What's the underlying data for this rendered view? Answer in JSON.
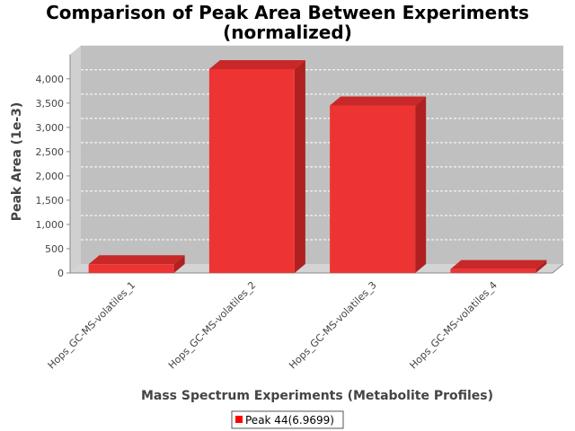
{
  "chart_data": {
    "type": "bar",
    "title_line1": "Comparison of Peak Area Between Experiments",
    "title_line2": "(normalized)",
    "xlabel": "Mass Spectrum Experiments (Metabolite Profiles)",
    "ylabel": "Peak Area (1e-3)",
    "categories": [
      "Hops_GC-MS-volatiles_1",
      "Hops_GC-MS-volatiles_2",
      "Hops_GC-MS-volatiles_3",
      "Hops_GC-MS-volatiles_4"
    ],
    "series": [
      {
        "name": "Peak 44(6.9699)",
        "values": [
          180,
          4200,
          3450,
          80
        ]
      }
    ],
    "ylim": [
      0,
      4500
    ],
    "yticks": [
      0,
      500,
      1000,
      1500,
      2000,
      2500,
      3000,
      3500,
      4000
    ],
    "ytick_labels": [
      "0",
      "500",
      "1,000",
      "1,500",
      "2,000",
      "2,500",
      "3,000",
      "3,500",
      "4,000"
    ],
    "grid": true,
    "legend_position": "bottom",
    "colors": {
      "bar_front": "#ee3333",
      "bar_top": "#c82828",
      "bar_side": "#b02020",
      "plot_back": "#c0c0c0",
      "plot_floor": "#d4d4d4",
      "plot_left_wall": "#d0d0d0"
    }
  }
}
